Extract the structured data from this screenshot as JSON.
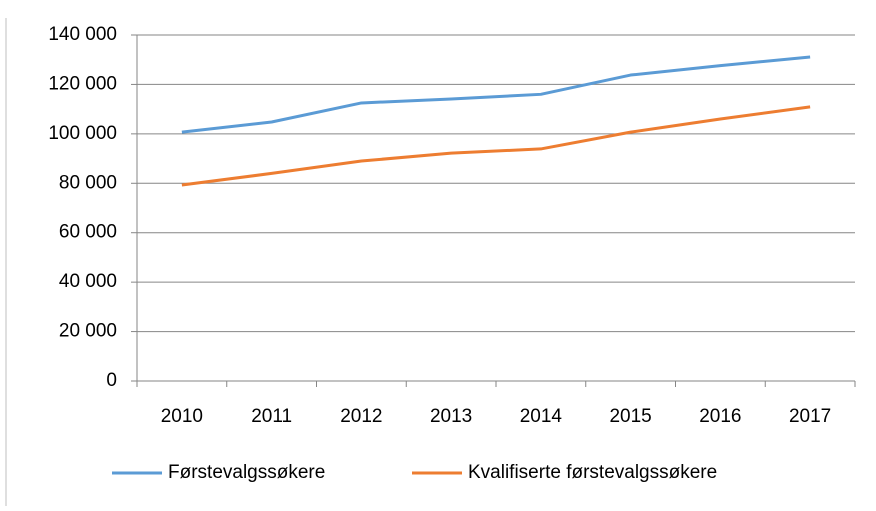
{
  "chart_data": {
    "type": "line",
    "categories": [
      "2010",
      "2011",
      "2012",
      "2013",
      "2014",
      "2015",
      "2016",
      "2017"
    ],
    "series": [
      {
        "name": "Førstevalgssøkere",
        "color": "#5b9bd5",
        "values": [
          100700,
          104800,
          112500,
          114100,
          116000,
          123800,
          127600,
          131100
        ]
      },
      {
        "name": "Kvalifiserte førstevalgssøkere",
        "color": "#ed7d31",
        "values": [
          79300,
          84000,
          89000,
          92200,
          93900,
          100700,
          106000,
          110900
        ]
      }
    ],
    "ylim": [
      0,
      140000
    ],
    "yticks": [
      0,
      {
        "value": 20000,
        "label": "20 000"
      },
      {
        "value": 40000,
        "label": "40 000"
      },
      {
        "value": 60000,
        "label": "60 000"
      },
      {
        "value": 80000,
        "label": "80 000"
      },
      {
        "value": 100000,
        "label": "100 000"
      },
      {
        "value": 120000,
        "label": "120 000"
      },
      {
        "value": 140000,
        "label": "140 000"
      }
    ],
    "grid": true,
    "legend": "bottom"
  }
}
